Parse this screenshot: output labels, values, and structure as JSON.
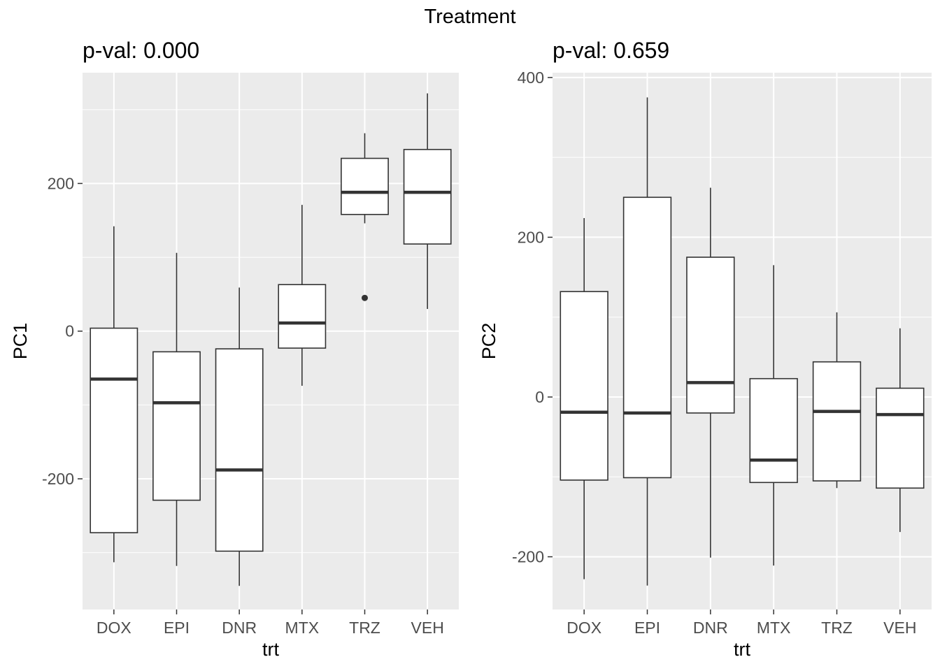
{
  "figure": {
    "suptitle": "Treatment"
  },
  "chart_data": [
    {
      "type": "box",
      "title": "p-val: 0.000",
      "xlabel": "trt",
      "ylabel": "PC1",
      "categories": [
        "DOX",
        "EPI",
        "DNR",
        "MTX",
        "TRZ",
        "VEH"
      ],
      "ylim": [
        -377,
        350
      ],
      "yticks": [
        -200,
        0,
        200
      ],
      "ytick_labels": [
        "-200",
        "0",
        "200"
      ],
      "grid": true,
      "colors": {
        "panel": "#ebebeb",
        "grid": "#ffffff",
        "box_fill": "#ffffff",
        "box_line": "#333333"
      },
      "boxes": [
        {
          "category": "DOX",
          "whisker_low": -313,
          "q1": -273,
          "median": -65,
          "q3": 4,
          "whisker_high": 142,
          "outliers": []
        },
        {
          "category": "EPI",
          "whisker_low": -318,
          "q1": -229,
          "median": -97,
          "q3": -28,
          "whisker_high": 106,
          "outliers": []
        },
        {
          "category": "DNR",
          "whisker_low": -345,
          "q1": -298,
          "median": -188,
          "q3": -24,
          "whisker_high": 59,
          "outliers": []
        },
        {
          "category": "MTX",
          "whisker_low": -74,
          "q1": -23,
          "median": 11,
          "q3": 63,
          "whisker_high": 171,
          "outliers": []
        },
        {
          "category": "TRZ",
          "whisker_low": 146,
          "q1": 158,
          "median": 188,
          "q3": 234,
          "whisker_high": 268,
          "outliers": [
            45
          ]
        },
        {
          "category": "VEH",
          "whisker_low": 30,
          "q1": 118,
          "median": 188,
          "q3": 246,
          "whisker_high": 322,
          "outliers": []
        }
      ]
    },
    {
      "type": "box",
      "title": "p-val: 0.659",
      "xlabel": "trt",
      "ylabel": "PC2",
      "categories": [
        "DOX",
        "EPI",
        "DNR",
        "MTX",
        "TRZ",
        "VEH"
      ],
      "ylim": [
        -266,
        406
      ],
      "yticks": [
        -200,
        0,
        200,
        400
      ],
      "ytick_labels": [
        "-200",
        "0",
        "200",
        "400"
      ],
      "grid": true,
      "colors": {
        "panel": "#ebebeb",
        "grid": "#ffffff",
        "box_fill": "#ffffff",
        "box_line": "#333333"
      },
      "boxes": [
        {
          "category": "DOX",
          "whisker_low": -228,
          "q1": -104,
          "median": -19,
          "q3": 132,
          "whisker_high": 224,
          "outliers": []
        },
        {
          "category": "EPI",
          "whisker_low": -236,
          "q1": -101,
          "median": -20,
          "q3": 250,
          "whisker_high": 375,
          "outliers": []
        },
        {
          "category": "DNR",
          "whisker_low": -201,
          "q1": -20,
          "median": 18,
          "q3": 175,
          "whisker_high": 262,
          "outliers": []
        },
        {
          "category": "MTX",
          "whisker_low": -211,
          "q1": -107,
          "median": -79,
          "q3": 23,
          "whisker_high": 165,
          "outliers": []
        },
        {
          "category": "TRZ",
          "whisker_low": -114,
          "q1": -105,
          "median": -18,
          "q3": 44,
          "whisker_high": 106,
          "outliers": []
        },
        {
          "category": "VEH",
          "whisker_low": -169,
          "q1": -114,
          "median": -22,
          "q3": 11,
          "whisker_high": 86,
          "outliers": []
        }
      ]
    }
  ]
}
